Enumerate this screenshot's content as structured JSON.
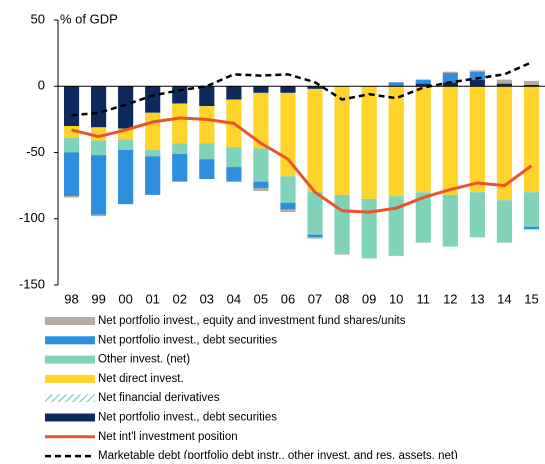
{
  "chart_data": {
    "type": "stacked-bar-line",
    "y_label": "% of GDP",
    "categories": [
      "98",
      "99",
      "00",
      "01",
      "02",
      "03",
      "04",
      "05",
      "06",
      "07",
      "08",
      "09",
      "10",
      "11",
      "12",
      "13",
      "14",
      "15"
    ],
    "ylim": [
      -150,
      50
    ],
    "yticks": [
      50,
      0,
      -50,
      -100,
      -150
    ],
    "series": [
      {
        "name": "Net portfolio invest., equity and investment fund shares/units",
        "type": "bar",
        "color": "#b5aba3",
        "values": [
          -1,
          -1,
          0,
          0,
          0,
          0,
          0,
          -2,
          -2,
          -1,
          -1,
          0,
          0,
          0,
          1,
          1,
          3,
          3
        ]
      },
      {
        "name": "Net portfolio invest., debt securities",
        "type": "bar",
        "color": "#2e8fe0",
        "values": [
          -33,
          -45,
          -41,
          -29,
          -21,
          -15,
          -11,
          -5,
          -5,
          -2,
          0,
          0,
          3,
          3,
          7,
          6,
          0,
          -2
        ]
      },
      {
        "name": "Other invest. (net)",
        "type": "bar",
        "color": "#80d2b8",
        "values": [
          -11,
          -11,
          -8,
          -5,
          -8,
          -12,
          -15,
          -25,
          -20,
          -32,
          -44,
          -45,
          -45,
          -38,
          -39,
          -34,
          -32,
          -26
        ]
      },
      {
        "name": "Net direct invest.",
        "type": "bar",
        "color": "#ffd42a",
        "values": [
          -9,
          -10,
          -8,
          -28,
          -30,
          -28,
          -36,
          -42,
          -63,
          -78,
          -82,
          -85,
          -83,
          -80,
          -82,
          -80,
          -86,
          -80
        ]
      },
      {
        "name": "Net financial derivatives",
        "type": "bar",
        "color": "#8fd8c4",
        "pattern": "hatch",
        "values": [
          0,
          0,
          0,
          0,
          0,
          0,
          0,
          0,
          0,
          0,
          0,
          0,
          0,
          0,
          0,
          0,
          0,
          0
        ]
      },
      {
        "name": "Net portfolio invest., debt securities",
        "type": "bar",
        "color": "#0d2a5e",
        "values": [
          -30,
          -31,
          -32,
          -20,
          -13,
          -15,
          -10,
          -5,
          -5,
          -2,
          0,
          0,
          0,
          2,
          3,
          5,
          2,
          1
        ]
      },
      {
        "name": "Net int'l investment position",
        "type": "line",
        "color": "#e8552a",
        "values": [
          -33,
          -38,
          -33,
          -27,
          -24,
          -25,
          -28,
          -43,
          -55,
          -80,
          -94,
          -95,
          -92,
          -84,
          -78,
          -73,
          -75,
          -60
        ]
      },
      {
        "name": "Marketable debt (portfolio debt instr., other invest. and res. assets, net)",
        "type": "line",
        "color": "#000000",
        "dash": true,
        "values": [
          -22,
          -20,
          -14,
          -7,
          -3,
          0,
          9,
          8,
          9,
          3,
          -10,
          -6,
          -9,
          -1,
          3,
          6,
          9,
          18
        ]
      }
    ]
  }
}
